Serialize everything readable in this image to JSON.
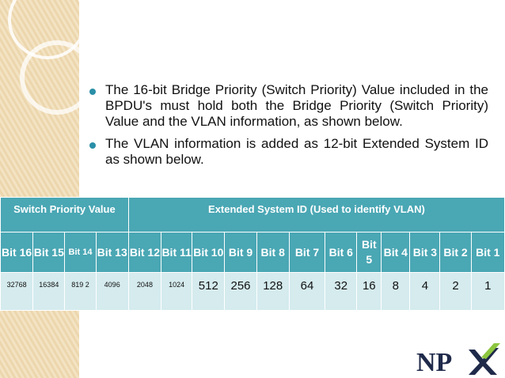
{
  "bullets": [
    "The 16-bit Bridge Priority (Switch Priority) Value included in the BPDU's must hold both the Bridge Priority (Switch Priority) Value and the VLAN information, as shown below.",
    "The VLAN information is added as 12-bit Extended System ID as shown below."
  ],
  "table": {
    "header_left": "Switch Priority Value",
    "header_right": "Extended System ID (Used to identify VLAN)",
    "bits": [
      "Bit 16",
      "Bit 15",
      "Bit 14",
      "Bit 13",
      "Bit 12",
      "Bit 11",
      "Bit 10",
      "Bit 9",
      "Bit 8",
      "Bit 7",
      "Bit 6",
      "Bit 5",
      "Bit 4",
      "Bit 3",
      "Bit 2",
      "Bit 1"
    ],
    "values": [
      "32768",
      "16384",
      "819 2",
      "4096",
      "2048",
      "1024",
      "512",
      "256",
      "128",
      "64",
      "32",
      "16",
      "8",
      "4",
      "2",
      "1"
    ]
  },
  "logo": {
    "text": "NPX",
    "colors": {
      "n": "#1f2a4a",
      "p": "#1f2a4a",
      "x": "#8dc63f"
    }
  },
  "colors": {
    "table_header": "#4aa7b4",
    "table_row": "#d5ebee",
    "bullet": "#2b8fa8",
    "sidebar": "#f3e3c3"
  }
}
